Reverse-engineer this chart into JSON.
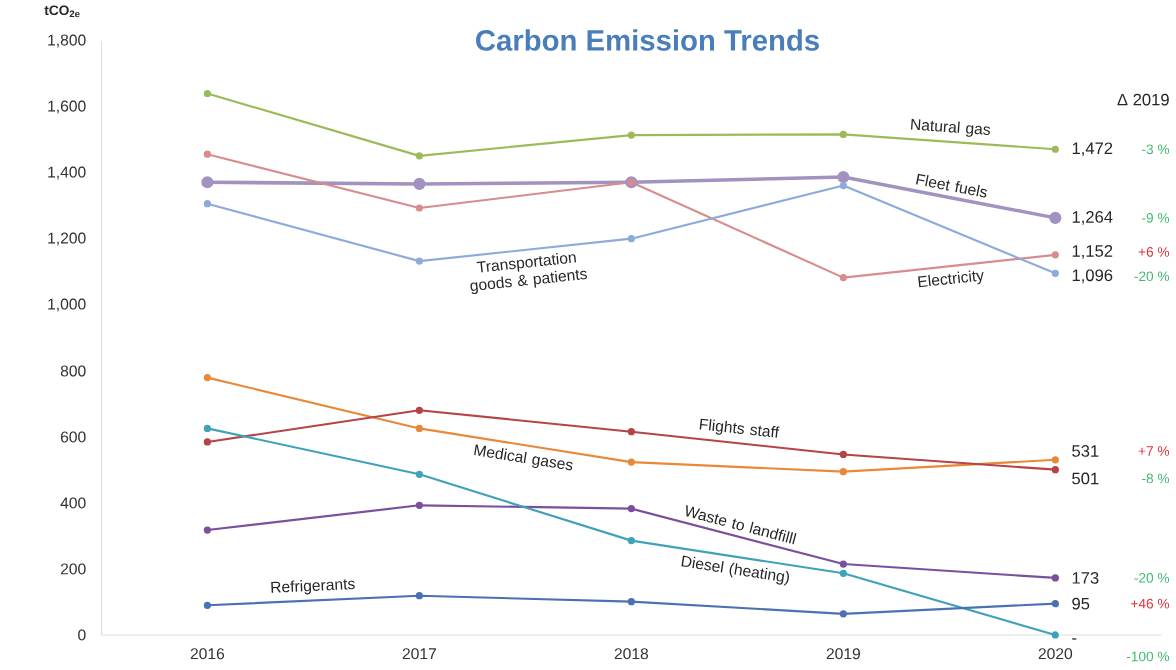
{
  "chart_data": {
    "type": "line",
    "title": "Carbon Emission Trends",
    "ylabel": "tCO$_{2e}$",
    "categories": [
      "2016",
      "2017",
      "2018",
      "2019",
      "2020"
    ],
    "series": [
      {
        "name": "Natural gas",
        "color": "#9bbb59",
        "values": [
          1641,
          1452,
          1515,
          1517,
          1472
        ],
        "value_labels": [
          null,
          null,
          null,
          null,
          "1,472"
        ]
      },
      {
        "name": "Fleet fuels",
        "color": "#a192bf",
        "values": [
          1372,
          1367,
          1372,
          1388,
          1264
        ],
        "value_labels": [
          null,
          null,
          null,
          null,
          "1,264"
        ]
      },
      {
        "name": "Electricity",
        "color": "#d98c8c",
        "values": [
          1457,
          1294,
          1372,
          1083,
          1152
        ],
        "value_labels": [
          null,
          null,
          null,
          null,
          "1,152"
        ]
      },
      {
        "name": "Transportation goods & patients",
        "color": "#8eaadb",
        "values": [
          1307,
          1133,
          1201,
          1362,
          1096
        ],
        "value_labels": [
          null,
          null,
          null,
          null,
          "1,096"
        ]
      },
      {
        "name": "Medical gases",
        "color": "#e8893a",
        "values": [
          780,
          626,
          524,
          495,
          531
        ],
        "value_labels": [
          null,
          null,
          null,
          null,
          "531"
        ]
      },
      {
        "name": "Flights staff",
        "color": "#b54447",
        "values": [
          585,
          681,
          616,
          547,
          501
        ],
        "value_labels": [
          null,
          null,
          null,
          null,
          "501"
        ]
      },
      {
        "name": "Waste to landfilll",
        "color": "#7a4f9e",
        "values": [
          318,
          393,
          383,
          215,
          173
        ],
        "value_labels": [
          null,
          null,
          null,
          null,
          "173"
        ]
      },
      {
        "name": "Diesel (heating)",
        "color": "#3fa2b8",
        "values": [
          626,
          487,
          286,
          187,
          0
        ],
        "value_labels": [
          null,
          null,
          null,
          null,
          "-"
        ]
      },
      {
        "name": "Refrigerants",
        "color": "#4a72b0",
        "values": [
          90,
          119,
          101,
          64,
          95
        ],
        "value_labels": [
          null,
          null,
          null,
          null,
          "95"
        ]
      }
    ],
    "ylim": [
      0,
      1800
    ],
    "yticks": [
      {
        "value": 0,
        "label": "0"
      },
      {
        "value": 200,
        "label": "200"
      },
      {
        "value": 400,
        "label": "400"
      },
      {
        "value": 600,
        "label": "600"
      },
      {
        "value": 800,
        "label": "800"
      },
      {
        "value": 1000,
        "label": "1,000"
      },
      {
        "value": 1200,
        "label": "1,200"
      },
      {
        "value": 1400,
        "label": "1,400"
      },
      {
        "value": 1600,
        "label": "1,600"
      },
      {
        "value": 1800,
        "label": "1,800"
      }
    ],
    "grid": false,
    "legend": false,
    "marker": "circle",
    "line_style": "solid",
    "annotations": [
      "Δ 2019",
      "-3 %",
      "-9 %",
      "+6 %",
      "-20 %",
      "+7 %",
      "-8 %",
      "-20 %",
      "-100 %",
      "+46 %"
    ]
  }
}
